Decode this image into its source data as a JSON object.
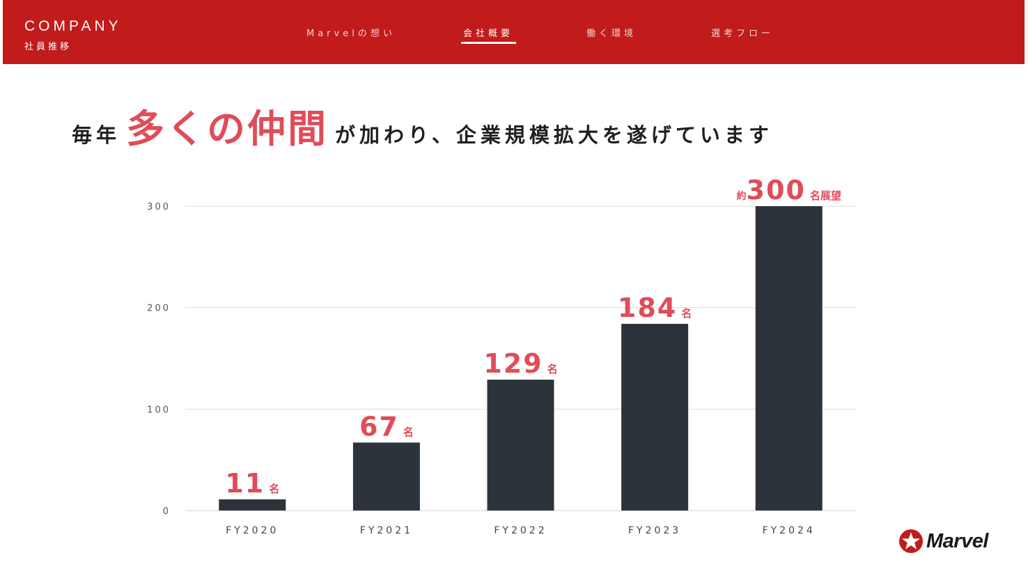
{
  "header": {
    "brand_en": "COMPANY",
    "brand_ja": "社員推移",
    "nav": [
      {
        "label": "Marvelの想い",
        "active": false
      },
      {
        "label": "会社概要",
        "active": true
      },
      {
        "label": "働く環境",
        "active": false
      },
      {
        "label": "選考フロー",
        "active": false
      }
    ]
  },
  "headline": {
    "pre": "毎年",
    "emphasis": "多くの仲間",
    "post": "が加わり、企業規模拡大を遂げています"
  },
  "logo": {
    "text": "Marvel",
    "icon": "star-circle-icon"
  },
  "colors": {
    "brand_red": "#c11b1c",
    "accent_red": "#e04c58",
    "bar": "#2d333b"
  },
  "chart_data": {
    "type": "bar",
    "categories": [
      "FY2020",
      "FY2021",
      "FY2022",
      "FY2023",
      "FY2024"
    ],
    "values": [
      11,
      67,
      129,
      184,
      300
    ],
    "data_labels": [
      {
        "prefix": "",
        "value": "11",
        "suffix": "名"
      },
      {
        "prefix": "",
        "value": "67",
        "suffix": "名"
      },
      {
        "prefix": "",
        "value": "129",
        "suffix": "名"
      },
      {
        "prefix": "",
        "value": "184",
        "suffix": "名"
      },
      {
        "prefix": "約",
        "value": "300",
        "suffix": "名展望"
      }
    ],
    "yticks": [
      "0",
      "100",
      "200",
      "300"
    ],
    "ylim": [
      0,
      300
    ],
    "grid": true,
    "title": "",
    "xlabel": "",
    "ylabel": ""
  }
}
